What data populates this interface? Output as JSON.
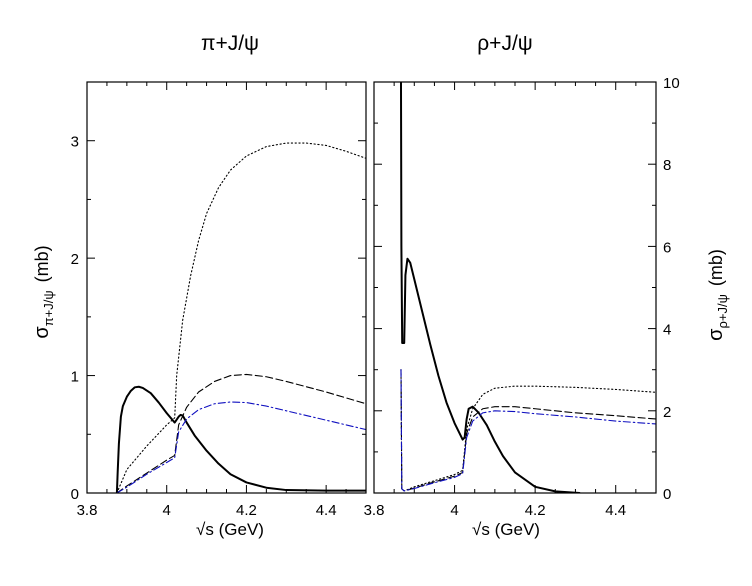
{
  "chart_data": [
    {
      "type": "line",
      "title": "π+J/ψ",
      "xlabel": "√s  (GeV)",
      "ylabel_main": "σ",
      "ylabel_sub": "π+J/ψ",
      "ylabel_unit": "(mb)",
      "xlim": [
        3.8,
        4.5
      ],
      "ylim": [
        0,
        3.5
      ],
      "x_ticks": [
        3.8,
        4.0,
        4.2,
        4.4
      ],
      "x_tick_labels": [
        "3.8",
        "4",
        "4.2",
        "4.4"
      ],
      "y_ticks": [
        0,
        1,
        2,
        3
      ],
      "y_tick_labels": [
        "0",
        "1",
        "2",
        "3"
      ],
      "series": [
        {
          "name": "solid",
          "color": "#000000",
          "style": "solid",
          "points": [
            [
              3.875,
              0
            ],
            [
              3.877,
              0.18
            ],
            [
              3.88,
              0.42
            ],
            [
              3.885,
              0.65
            ],
            [
              3.89,
              0.74
            ],
            [
              3.9,
              0.82
            ],
            [
              3.91,
              0.87
            ],
            [
              3.92,
              0.9
            ],
            [
              3.93,
              0.905
            ],
            [
              3.94,
              0.895
            ],
            [
              3.96,
              0.85
            ],
            [
              3.98,
              0.77
            ],
            [
              4.0,
              0.68
            ],
            [
              4.02,
              0.6
            ],
            [
              4.03,
              0.65
            ],
            [
              4.035,
              0.665
            ],
            [
              4.04,
              0.66
            ],
            [
              4.05,
              0.6
            ],
            [
              4.07,
              0.49
            ],
            [
              4.1,
              0.36
            ],
            [
              4.13,
              0.25
            ],
            [
              4.16,
              0.16
            ],
            [
              4.2,
              0.09
            ],
            [
              4.25,
              0.045
            ],
            [
              4.3,
              0.025
            ],
            [
              4.4,
              0.02
            ],
            [
              4.5,
              0.02
            ]
          ]
        },
        {
          "name": "dotted",
          "color": "#000000",
          "style": "dotted",
          "points": [
            [
              3.875,
              0
            ],
            [
              3.9,
              0.2
            ],
            [
              3.95,
              0.4
            ],
            [
              4.0,
              0.58
            ],
            [
              4.02,
              0.64
            ],
            [
              4.025,
              1.0
            ],
            [
              4.04,
              1.47
            ],
            [
              4.06,
              1.85
            ],
            [
              4.08,
              2.15
            ],
            [
              4.1,
              2.38
            ],
            [
              4.13,
              2.6
            ],
            [
              4.16,
              2.75
            ],
            [
              4.2,
              2.87
            ],
            [
              4.25,
              2.95
            ],
            [
              4.3,
              2.98
            ],
            [
              4.35,
              2.98
            ],
            [
              4.4,
              2.96
            ],
            [
              4.45,
              2.91
            ],
            [
              4.5,
              2.85
            ]
          ]
        },
        {
          "name": "dashed",
          "color": "#000000",
          "style": "dashed",
          "points": [
            [
              3.875,
              0
            ],
            [
              3.9,
              0.06
            ],
            [
              3.95,
              0.17
            ],
            [
              4.0,
              0.28
            ],
            [
              4.02,
              0.32
            ],
            [
              4.03,
              0.58
            ],
            [
              4.05,
              0.73
            ],
            [
              4.08,
              0.86
            ],
            [
              4.12,
              0.95
            ],
            [
              4.16,
              1.0
            ],
            [
              4.2,
              1.01
            ],
            [
              4.25,
              0.99
            ],
            [
              4.3,
              0.95
            ],
            [
              4.4,
              0.86
            ],
            [
              4.5,
              0.76
            ]
          ]
        },
        {
          "name": "dash-dot",
          "color": "#1010c0",
          "style": "dashdot",
          "points": [
            [
              3.875,
              0
            ],
            [
              3.9,
              0.05
            ],
            [
              3.95,
              0.16
            ],
            [
              4.0,
              0.26
            ],
            [
              4.02,
              0.3
            ],
            [
              4.03,
              0.52
            ],
            [
              4.05,
              0.63
            ],
            [
              4.08,
              0.71
            ],
            [
              4.12,
              0.76
            ],
            [
              4.16,
              0.775
            ],
            [
              4.2,
              0.77
            ],
            [
              4.25,
              0.74
            ],
            [
              4.3,
              0.7
            ],
            [
              4.4,
              0.62
            ],
            [
              4.5,
              0.54
            ]
          ]
        }
      ]
    },
    {
      "type": "line",
      "title": "ρ+J/ψ",
      "xlabel": "√s  (GeV)",
      "ylabel_main": "σ",
      "ylabel_sub": "ρ+J/ψ",
      "ylabel_unit": "(mb)",
      "xlim": [
        3.8,
        4.5
      ],
      "ylim": [
        0,
        10
      ],
      "x_ticks": [
        3.8,
        4.0,
        4.2,
        4.4
      ],
      "x_tick_labels": [
        "3.8",
        "4",
        "4.2",
        "4.4"
      ],
      "y_ticks": [
        0,
        2,
        4,
        6,
        8,
        10
      ],
      "y_tick_labels": [
        "0",
        "2",
        "4",
        "6",
        "8",
        "10"
      ],
      "series": [
        {
          "name": "solid",
          "color": "#000000",
          "style": "solid",
          "points": [
            [
              3.867,
              10
            ],
            [
              3.868,
              6.0
            ],
            [
              3.87,
              3.65
            ],
            [
              3.875,
              3.65
            ],
            [
              3.878,
              5.3
            ],
            [
              3.883,
              5.7
            ],
            [
              3.89,
              5.6
            ],
            [
              3.9,
              5.2
            ],
            [
              3.92,
              4.4
            ],
            [
              3.94,
              3.6
            ],
            [
              3.96,
              2.85
            ],
            [
              3.98,
              2.2
            ],
            [
              4.0,
              1.7
            ],
            [
              4.02,
              1.3
            ],
            [
              4.025,
              1.35
            ],
            [
              4.03,
              1.8
            ],
            [
              4.035,
              2.05
            ],
            [
              4.045,
              2.1
            ],
            [
              4.06,
              1.95
            ],
            [
              4.08,
              1.65
            ],
            [
              4.1,
              1.25
            ],
            [
              4.12,
              0.9
            ],
            [
              4.15,
              0.5
            ],
            [
              4.2,
              0.15
            ],
            [
              4.25,
              0.04
            ],
            [
              4.31,
              0
            ]
          ]
        },
        {
          "name": "dotted",
          "color": "#000000",
          "style": "dotted",
          "points": [
            [
              3.867,
              3.0
            ],
            [
              3.869,
              0.1
            ],
            [
              3.875,
              0.05
            ],
            [
              3.9,
              0.15
            ],
            [
              3.95,
              0.3
            ],
            [
              4.0,
              0.45
            ],
            [
              4.02,
              0.55
            ],
            [
              4.03,
              1.55
            ],
            [
              4.045,
              2.05
            ],
            [
              4.07,
              2.4
            ],
            [
              4.1,
              2.55
            ],
            [
              4.15,
              2.6
            ],
            [
              4.2,
              2.6
            ],
            [
              4.3,
              2.57
            ],
            [
              4.4,
              2.52
            ],
            [
              4.5,
              2.45
            ]
          ]
        },
        {
          "name": "dashed",
          "color": "#000000",
          "style": "dashed",
          "points": [
            [
              3.867,
              3.0
            ],
            [
              3.869,
              0.1
            ],
            [
              3.875,
              0.05
            ],
            [
              3.9,
              0.12
            ],
            [
              3.95,
              0.27
            ],
            [
              4.0,
              0.41
            ],
            [
              4.02,
              0.5
            ],
            [
              4.03,
              1.45
            ],
            [
              4.045,
              1.85
            ],
            [
              4.07,
              2.05
            ],
            [
              4.1,
              2.1
            ],
            [
              4.15,
              2.1
            ],
            [
              4.2,
              2.05
            ],
            [
              4.3,
              1.95
            ],
            [
              4.4,
              1.88
            ],
            [
              4.5,
              1.8
            ]
          ]
        },
        {
          "name": "dash-dot",
          "color": "#1010c0",
          "style": "dashdot",
          "points": [
            [
              3.867,
              3.0
            ],
            [
              3.869,
              0.1
            ],
            [
              3.875,
              0.05
            ],
            [
              3.9,
              0.11
            ],
            [
              3.95,
              0.25
            ],
            [
              4.0,
              0.38
            ],
            [
              4.02,
              0.47
            ],
            [
              4.03,
              1.35
            ],
            [
              4.045,
              1.75
            ],
            [
              4.07,
              1.95
            ],
            [
              4.1,
              2.0
            ],
            [
              4.15,
              1.98
            ],
            [
              4.2,
              1.93
            ],
            [
              4.3,
              1.85
            ],
            [
              4.4,
              1.75
            ],
            [
              4.5,
              1.68
            ]
          ]
        }
      ]
    }
  ]
}
